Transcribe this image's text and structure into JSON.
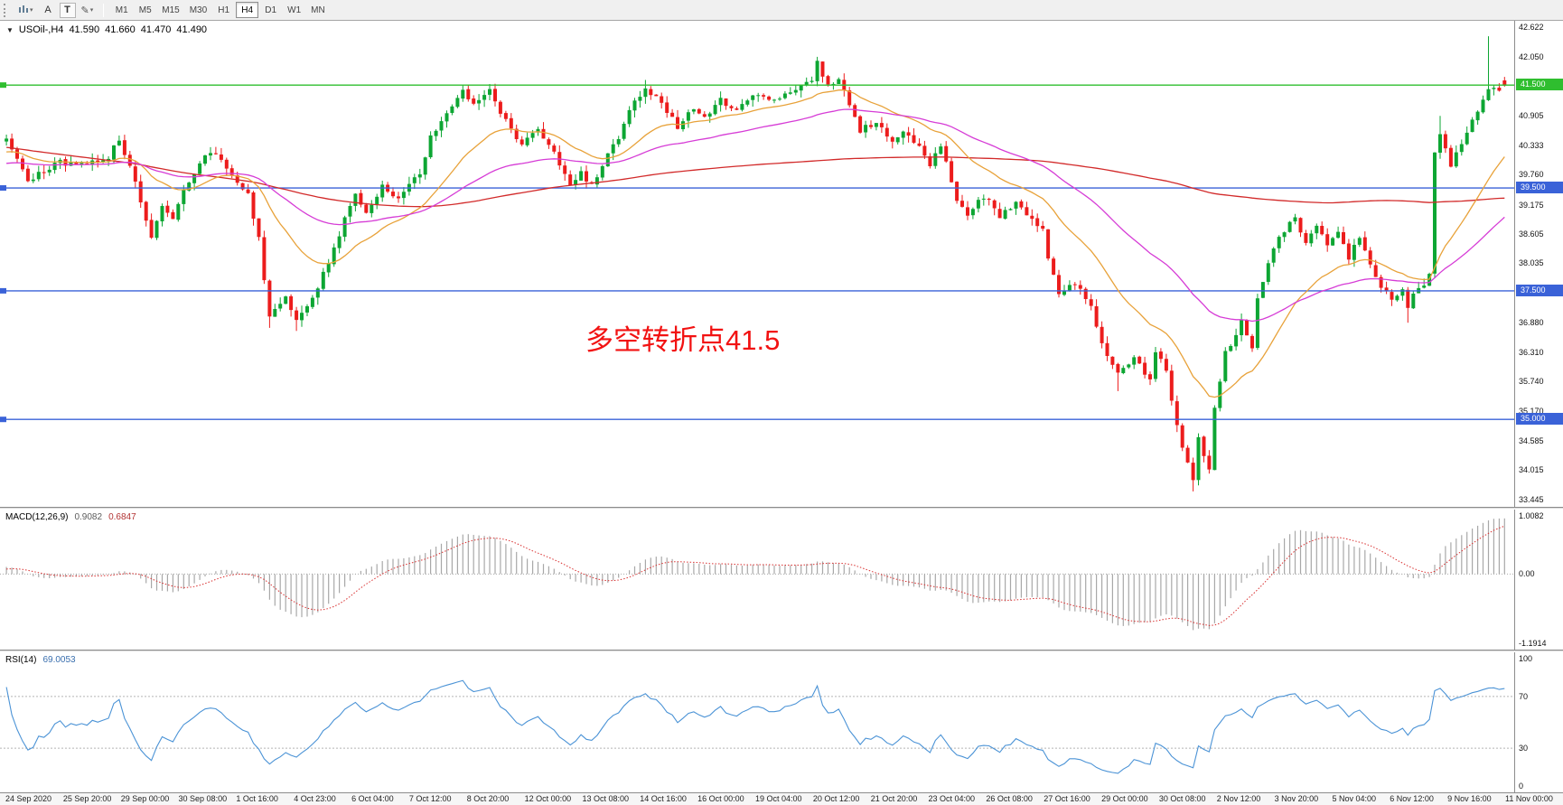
{
  "toolbar": {
    "cursor_label": "A",
    "text_label": "T",
    "timeframes": [
      {
        "label": "M1",
        "active": false
      },
      {
        "label": "M5",
        "active": false
      },
      {
        "label": "M15",
        "active": false
      },
      {
        "label": "M30",
        "active": false
      },
      {
        "label": "H1",
        "active": false
      },
      {
        "label": "H4",
        "active": true
      },
      {
        "label": "D1",
        "active": false
      },
      {
        "label": "W1",
        "active": false
      },
      {
        "label": "MN",
        "active": false
      }
    ]
  },
  "chart": {
    "window_menu_icon": "▼",
    "symbol_label": "USOil-,H4",
    "ohlc_text": {
      "open": "41.590",
      "high": "41.660",
      "low": "41.470",
      "close": "41.490"
    },
    "annotation": {
      "text": "多空转折点41.5",
      "color": "#f21212"
    }
  },
  "chart_data": {
    "type": "candlestick",
    "instrument": "USOil-",
    "timeframe": "H4",
    "bars": 280,
    "last": {
      "open": 41.59,
      "high": 41.66,
      "low": 41.47,
      "close": 41.49
    },
    "colors": {
      "up": "#0da633",
      "down": "#ec1c1c",
      "macd_hist": "#a8a8a8",
      "macd_signal": "#d93030",
      "rsi_line": "#4b93d6",
      "level_dotted": "#b5b5b5",
      "zero_line": "#aaaaaa"
    },
    "y_axis": {
      "max": 42.75,
      "min": 33.3,
      "ticks": [
        42.622,
        42.05,
        40.905,
        40.333,
        39.76,
        39.175,
        38.605,
        38.035,
        36.88,
        36.31,
        35.74,
        35.17,
        34.585,
        34.015,
        33.445
      ]
    },
    "hlines": [
      {
        "price": 41.5,
        "label": "41.500",
        "color": "#2fbe2f"
      },
      {
        "price": 39.5,
        "label": "39.500",
        "color": "#3a62d8"
      },
      {
        "price": 37.5,
        "label": "37.500",
        "color": "#3a62d8"
      },
      {
        "price": 35.0,
        "label": "35.000",
        "color": "#3a62d8"
      }
    ],
    "x_axis": {
      "labels": [
        "24 Sep 2020",
        "25 Sep 20:00",
        "29 Sep 00:00",
        "30 Sep 08:00",
        "1 Oct 16:00",
        "4 Oct 23:00",
        "6 Oct 04:00",
        "7 Oct 12:00",
        "8 Oct 20:00",
        "12 Oct 00:00",
        "13 Oct 08:00",
        "14 Oct 16:00",
        "16 Oct 00:00",
        "19 Oct 04:00",
        "20 Oct 12:00",
        "21 Oct 20:00",
        "23 Oct 04:00",
        "26 Oct 08:00",
        "27 Oct 16:00",
        "29 Oct 00:00",
        "30 Oct 08:00",
        "2 Nov 12:00",
        "3 Nov 20:00",
        "5 Nov 04:00",
        "6 Nov 12:00",
        "9 Nov 16:00",
        "11 Nov 00:00"
      ]
    },
    "price_path": [
      [
        0,
        40.45
      ],
      [
        4,
        39.65
      ],
      [
        10,
        40.0
      ],
      [
        15,
        39.95
      ],
      [
        19,
        40.1
      ],
      [
        21,
        40.45
      ],
      [
        24,
        39.6
      ],
      [
        27,
        38.55
      ],
      [
        29,
        39.2
      ],
      [
        31,
        38.95
      ],
      [
        33,
        39.5
      ],
      [
        37,
        40.15
      ],
      [
        39,
        40.2
      ],
      [
        41,
        39.9
      ],
      [
        45,
        39.35
      ],
      [
        47,
        38.5
      ],
      [
        49,
        36.95
      ],
      [
        52,
        37.45
      ],
      [
        54,
        36.9
      ],
      [
        57,
        37.35
      ],
      [
        60,
        38.05
      ],
      [
        63,
        38.9
      ],
      [
        65,
        39.4
      ],
      [
        67,
        39.05
      ],
      [
        70,
        39.55
      ],
      [
        73,
        39.25
      ],
      [
        77,
        39.8
      ],
      [
        79,
        40.5
      ],
      [
        82,
        41.0
      ],
      [
        85,
        41.35
      ],
      [
        87,
        41.1
      ],
      [
        90,
        41.4
      ],
      [
        94,
        40.6
      ],
      [
        96,
        40.35
      ],
      [
        99,
        40.6
      ],
      [
        102,
        40.15
      ],
      [
        105,
        39.6
      ],
      [
        107,
        39.8
      ],
      [
        109,
        39.55
      ],
      [
        112,
        40.2
      ],
      [
        114,
        40.45
      ],
      [
        116,
        41.0
      ],
      [
        119,
        41.45
      ],
      [
        122,
        41.15
      ],
      [
        125,
        40.7
      ],
      [
        128,
        41.05
      ],
      [
        130,
        40.9
      ],
      [
        133,
        41.2
      ],
      [
        136,
        41.05
      ],
      [
        139,
        41.3
      ],
      [
        142,
        41.2
      ],
      [
        146,
        41.35
      ],
      [
        150,
        41.6
      ],
      [
        151,
        41.95
      ],
      [
        153,
        41.5
      ],
      [
        155,
        41.65
      ],
      [
        157,
        41.15
      ],
      [
        159,
        40.6
      ],
      [
        162,
        40.8
      ],
      [
        165,
        40.4
      ],
      [
        167,
        40.6
      ],
      [
        170,
        40.3
      ],
      [
        172,
        39.95
      ],
      [
        174,
        40.35
      ],
      [
        177,
        39.3
      ],
      [
        179,
        39.0
      ],
      [
        182,
        39.35
      ],
      [
        185,
        38.95
      ],
      [
        188,
        39.2
      ],
      [
        191,
        38.9
      ],
      [
        193,
        38.65
      ],
      [
        194,
        38.15
      ],
      [
        196,
        37.4
      ],
      [
        199,
        37.65
      ],
      [
        202,
        37.15
      ],
      [
        204,
        36.45
      ],
      [
        207,
        35.9
      ],
      [
        210,
        36.15
      ],
      [
        213,
        35.8
      ],
      [
        214,
        36.35
      ],
      [
        216,
        35.95
      ],
      [
        217,
        35.35
      ],
      [
        219,
        34.45
      ],
      [
        221,
        33.8
      ],
      [
        222,
        34.6
      ],
      [
        224,
        34.05
      ],
      [
        225,
        35.25
      ],
      [
        227,
        36.3
      ],
      [
        229,
        36.65
      ],
      [
        230,
        36.95
      ],
      [
        232,
        36.4
      ],
      [
        233,
        37.35
      ],
      [
        235,
        38.05
      ],
      [
        237,
        38.55
      ],
      [
        240,
        38.9
      ],
      [
        242,
        38.45
      ],
      [
        244,
        38.8
      ],
      [
        246,
        38.35
      ],
      [
        248,
        38.7
      ],
      [
        250,
        38.15
      ],
      [
        252,
        38.55
      ],
      [
        254,
        38.0
      ],
      [
        256,
        37.6
      ],
      [
        258,
        37.3
      ],
      [
        260,
        37.5
      ],
      [
        261,
        37.15
      ],
      [
        262,
        37.4
      ],
      [
        264,
        37.65
      ],
      [
        265,
        37.8
      ],
      [
        266,
        40.2
      ],
      [
        267,
        40.55
      ],
      [
        269,
        39.9
      ],
      [
        270,
        40.15
      ],
      [
        273,
        40.8
      ],
      [
        275,
        41.2
      ],
      [
        276,
        41.45
      ],
      [
        278,
        41.35
      ],
      [
        279,
        41.49
      ]
    ],
    "warmup_path": [
      [
        -210,
        43.0
      ],
      [
        -190,
        42.5
      ],
      [
        -170,
        42.9
      ],
      [
        -150,
        42.3
      ],
      [
        -135,
        41.6
      ],
      [
        -120,
        39.5
      ],
      [
        -110,
        37.2
      ],
      [
        -100,
        36.9
      ],
      [
        -90,
        37.5
      ],
      [
        -80,
        38.2
      ],
      [
        -70,
        39.0
      ],
      [
        -60,
        39.7
      ],
      [
        -50,
        40.3
      ],
      [
        -40,
        40.0
      ],
      [
        -30,
        40.2
      ],
      [
        -20,
        39.8
      ],
      [
        -10,
        40.1
      ],
      [
        -1,
        40.4
      ]
    ],
    "spikes": [
      {
        "i": 49,
        "low": 36.78
      },
      {
        "i": 54,
        "low": 36.72
      },
      {
        "i": 86,
        "high": 41.5
      },
      {
        "i": 90,
        "high": 41.52
      },
      {
        "i": 119,
        "high": 41.6
      },
      {
        "i": 151,
        "high": 42.05
      },
      {
        "i": 207,
        "low": 35.55
      },
      {
        "i": 221,
        "low": 33.6
      },
      {
        "i": 261,
        "low": 36.88
      },
      {
        "i": 267,
        "high": 40.9
      },
      {
        "i": 276,
        "high": 42.45
      }
    ],
    "moving_averages": [
      {
        "type": "sma",
        "period": 200,
        "color": "#d22a2a"
      },
      {
        "type": "ema",
        "period": 21,
        "color": "#e8a23a"
      },
      {
        "type": "ema",
        "period": 55,
        "color": "#d63cd6"
      }
    ],
    "macd": {
      "label": "MACD(12,26,9)",
      "value_main": "0.9082",
      "value_signal": "0.6847",
      "fast": 12,
      "slow": 26,
      "signal": 9,
      "axis": {
        "max": 1.0082,
        "min": -1.1914,
        "labels": [
          "1.0082",
          "0.00",
          "-1.1914"
        ]
      }
    },
    "rsi": {
      "label": "RSI(14)",
      "value": "69.0053",
      "period": 14,
      "levels": [
        70,
        30
      ],
      "axis_labels": [
        "100",
        "70",
        "30",
        "0"
      ]
    }
  }
}
